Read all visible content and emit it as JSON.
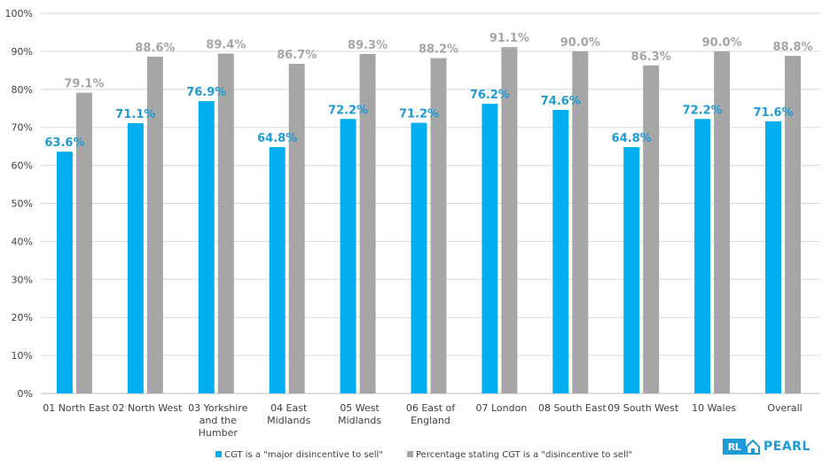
{
  "chart_data": {
    "type": "bar",
    "categories": [
      [
        "01 North East"
      ],
      [
        "02 North West"
      ],
      [
        "03 Yorkshire",
        "and the",
        "Humber"
      ],
      [
        "04 East",
        "Midlands"
      ],
      [
        "05 West",
        "Midlands"
      ],
      [
        "06 East of",
        "England"
      ],
      [
        "07 London"
      ],
      [
        "08 South East"
      ],
      [
        "09 South West"
      ],
      [
        "10 Wales"
      ],
      [
        "Overall"
      ]
    ],
    "series": [
      {
        "name": "CGT is a \"major disincentive to sell\"",
        "color": "#00aeef",
        "label_color": "#1f9ad6",
        "values": [
          63.6,
          71.1,
          76.9,
          64.8,
          72.2,
          71.2,
          76.2,
          74.6,
          64.8,
          72.2,
          71.6
        ],
        "labels": [
          "63.6%",
          "71.1%",
          "76.9%",
          "64.8%",
          "72.2%",
          "71.2%",
          "76.2%",
          "74.6%",
          "64.8%",
          "72.2%",
          "71.6%"
        ]
      },
      {
        "name": "Percentage stating CGT is a \"disincentive to sell\"",
        "color": "#a6a6a6",
        "label_color": "#a6a6a6",
        "values": [
          79.1,
          88.6,
          89.4,
          86.7,
          89.3,
          88.2,
          91.1,
          90.0,
          86.3,
          90.0,
          88.8
        ],
        "labels": [
          "79.1%",
          "88.6%",
          "89.4%",
          "86.7%",
          "89.3%",
          "88.2%",
          "91.1%",
          "90.0%",
          "86.3%",
          "90.0%",
          "88.8%"
        ]
      }
    ],
    "y_ticks": [
      "0%",
      "10%",
      "20%",
      "30%",
      "40%",
      "50%",
      "60%",
      "70%",
      "80%",
      "90%",
      "100%"
    ],
    "ylim": [
      0,
      100
    ],
    "grid": true,
    "legend_position": "bottom"
  },
  "logo": {
    "mark": "RL",
    "text": "PEARL",
    "color": "#1f9ad6",
    "icon": "house-icon"
  }
}
